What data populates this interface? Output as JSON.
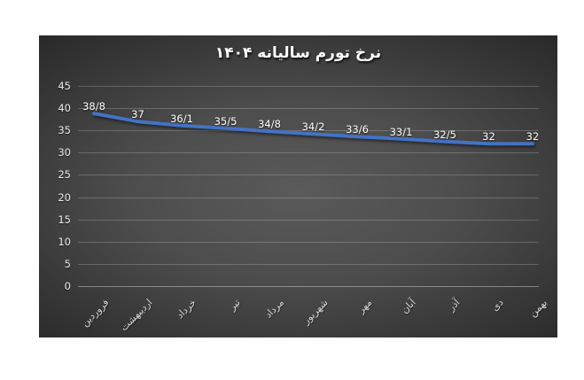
{
  "page": {
    "background": "#ffffff"
  },
  "chart": {
    "colors": {
      "line": "#4472c4",
      "plot_bg_center": "#5a5a5a",
      "plot_bg_edge": "#262626",
      "gridline": "rgba(225,225,225,0.25)",
      "title_text": "#ffffff",
      "tick_text": "#d9d9d9"
    }
  },
  "chart_data": {
    "type": "line",
    "title": "نرخ تورم سالیانه ۱۴۰۴",
    "categories": [
      "فروردین",
      "اردیبهشت",
      "خرداد",
      "تیر",
      "مرداد",
      "شهریور",
      "مهر",
      "آبان",
      "آذر",
      "دی",
      "بهمن"
    ],
    "values": [
      38.8,
      37,
      36.1,
      35.5,
      34.8,
      34.2,
      33.6,
      33.1,
      32.5,
      32,
      32
    ],
    "data_labels": [
      "38/8",
      "37",
      "36/1",
      "35/5",
      "34/8",
      "34/2",
      "33/6",
      "33/1",
      "32/5",
      "32",
      "32"
    ],
    "y_ticks": [
      0,
      5,
      10,
      15,
      20,
      25,
      30,
      35,
      40,
      45
    ],
    "ylim": [
      0,
      45
    ],
    "xlabel": "",
    "ylabel": "",
    "grid": true,
    "legend": "none",
    "line_color": "#4472c4"
  }
}
